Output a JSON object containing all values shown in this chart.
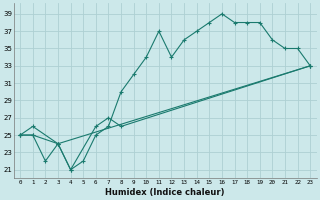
{
  "background_color": "#cce8ea",
  "grid_color": "#aed0d3",
  "line_color": "#1a7a6e",
  "xlabel": "Humidex (Indice chaleur)",
  "ylabel_ticks": [
    21,
    23,
    25,
    27,
    29,
    31,
    33,
    35,
    37,
    39
  ],
  "xlabel_ticks": [
    0,
    1,
    2,
    3,
    4,
    5,
    6,
    7,
    8,
    9,
    10,
    11,
    12,
    13,
    14,
    15,
    16,
    17,
    18,
    19,
    20,
    21,
    22,
    23
  ],
  "xlim": [
    -0.5,
    23.5
  ],
  "ylim": [
    20.0,
    40.2
  ],
  "series": [
    {
      "x": [
        0,
        1,
        2,
        3,
        4,
        5,
        6,
        7,
        8,
        9,
        10,
        11,
        12,
        13,
        14,
        15,
        16,
        17,
        18,
        19,
        20,
        21,
        22,
        23
      ],
      "y": [
        25,
        25,
        22,
        24,
        21,
        22,
        25,
        26,
        30,
        32,
        34,
        37,
        34,
        36,
        37,
        38,
        39,
        38,
        38,
        38,
        36,
        35,
        35,
        33
      ]
    },
    {
      "x": [
        0,
        1,
        3,
        4,
        6,
        7,
        8,
        23
      ],
      "y": [
        25,
        25,
        24,
        21,
        26,
        27,
        26,
        33
      ]
    },
    {
      "x": [
        0,
        1,
        3,
        23
      ],
      "y": [
        25,
        26,
        24,
        33
      ]
    }
  ]
}
